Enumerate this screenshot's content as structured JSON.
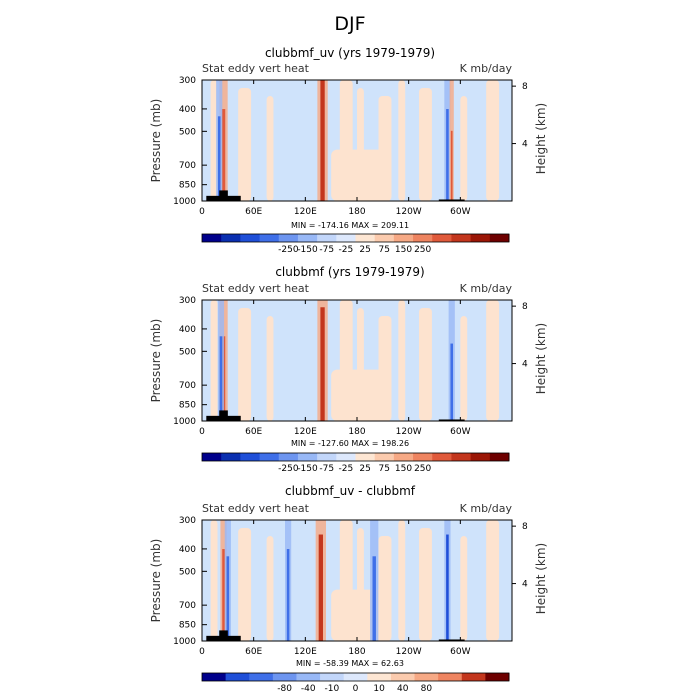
{
  "page_title": "DJF",
  "colors": {
    "bg_blue": "#cfe3fb",
    "bg_peach": "#fde3cf",
    "land": "#000000"
  },
  "chart_data": [
    {
      "type": "heatmap",
      "title": "clubbmf_uv (yrs 1979-1979)",
      "left_subtitle": "Stat eddy vert heat",
      "right_subtitle": "K mb/day",
      "ylabel": "Pressure (mb)",
      "ylabel_right": "Height (km)",
      "x_tick_labels": [
        "0",
        "60E",
        "120E",
        "180",
        "120W",
        "60W"
      ],
      "x_ticks_deg": [
        0,
        60,
        120,
        180,
        240,
        300
      ],
      "xlim": [
        0,
        360
      ],
      "y_tick_labels": [
        "300",
        "400",
        "500",
        "700",
        "850",
        "1000"
      ],
      "y_ticks": [
        300,
        400,
        500,
        700,
        850,
        1000
      ],
      "ylim": [
        300,
        1000
      ],
      "right_tick_labels": [
        "8",
        "4"
      ],
      "right_ticks_km": [
        8,
        4
      ],
      "stats": "MIN = -174.16   MAX = 209.11",
      "colorbar_labels": [
        "-250",
        "-150",
        "-75",
        "-25",
        "25",
        "75",
        "150",
        "250"
      ],
      "colorbar_colors": [
        "#00008b",
        "#0a2fb0",
        "#1f4fd8",
        "#3f6fe8",
        "#6d95f0",
        "#98b8f6",
        "#c2d6fa",
        "#dde8fc",
        "#fde6d3",
        "#fbcbae",
        "#f6a985",
        "#ee8460",
        "#e05a3b",
        "#c3361d",
        "#9b1606",
        "#6e0000"
      ],
      "features": [
        {
          "lon": 140,
          "width": 5,
          "intensity": 1.0,
          "sign": 1
        },
        {
          "lon": 25,
          "width": 4,
          "intensity": 0.6,
          "sign": 1
        },
        {
          "lon": 20,
          "width": 3,
          "intensity": 0.5,
          "sign": -1
        },
        {
          "lon": 285,
          "width": 3,
          "intensity": 0.6,
          "sign": -1
        },
        {
          "lon": 290,
          "width": 2,
          "intensity": 0.3,
          "sign": 1
        }
      ],
      "land_blocks": [
        {
          "lon_start": 5,
          "lon_end": 45,
          "p_top": 950
        },
        {
          "lon_start": 20,
          "lon_end": 30,
          "p_top": 900
        },
        {
          "lon_start": 275,
          "lon_end": 305,
          "p_top": 985
        }
      ]
    },
    {
      "type": "heatmap",
      "title": "clubbmf (yrs 1979-1979)",
      "left_subtitle": "Stat eddy vert heat",
      "right_subtitle": "K mb/day",
      "ylabel": "Pressure (mb)",
      "ylabel_right": "Height (km)",
      "x_tick_labels": [
        "0",
        "60E",
        "120E",
        "180",
        "120W",
        "60W"
      ],
      "x_ticks_deg": [
        0,
        60,
        120,
        180,
        240,
        300
      ],
      "xlim": [
        0,
        360
      ],
      "y_tick_labels": [
        "300",
        "400",
        "500",
        "700",
        "850",
        "1000"
      ],
      "y_ticks": [
        300,
        400,
        500,
        700,
        850,
        1000
      ],
      "ylim": [
        300,
        1000
      ],
      "right_tick_labels": [
        "8",
        "4"
      ],
      "right_ticks_km": [
        8,
        4
      ],
      "stats": "MIN = -127.60   MAX = 198.26",
      "colorbar_labels": [
        "-250",
        "-150",
        "-75",
        "-25",
        "25",
        "75",
        "150",
        "250"
      ],
      "colorbar_colors": [
        "#00008b",
        "#0a2fb0",
        "#1f4fd8",
        "#3f6fe8",
        "#6d95f0",
        "#98b8f6",
        "#c2d6fa",
        "#dde8fc",
        "#fde6d3",
        "#fbcbae",
        "#f6a985",
        "#ee8460",
        "#e05a3b",
        "#c3361d",
        "#9b1606",
        "#6e0000"
      ],
      "features": [
        {
          "lon": 140,
          "width": 5,
          "intensity": 0.9,
          "sign": 1
        },
        {
          "lon": 25,
          "width": 4,
          "intensity": 0.5,
          "sign": 1
        },
        {
          "lon": 22,
          "width": 3,
          "intensity": 0.5,
          "sign": -1
        },
        {
          "lon": 290,
          "width": 3,
          "intensity": 0.4,
          "sign": -1
        }
      ],
      "land_blocks": [
        {
          "lon_start": 5,
          "lon_end": 45,
          "p_top": 950
        },
        {
          "lon_start": 20,
          "lon_end": 30,
          "p_top": 900
        },
        {
          "lon_start": 275,
          "lon_end": 305,
          "p_top": 985
        }
      ]
    },
    {
      "type": "heatmap",
      "title": "clubbmf_uv - clubbmf",
      "left_subtitle": "Stat eddy vert heat",
      "right_subtitle": "K mb/day",
      "ylabel": "Pressure (mb)",
      "ylabel_right": "Height (km)",
      "x_tick_labels": [
        "0",
        "60E",
        "120E",
        "180",
        "120W",
        "60W"
      ],
      "x_ticks_deg": [
        0,
        60,
        120,
        180,
        240,
        300
      ],
      "xlim": [
        0,
        360
      ],
      "y_tick_labels": [
        "300",
        "400",
        "500",
        "700",
        "850",
        "1000"
      ],
      "y_ticks": [
        300,
        400,
        500,
        700,
        850,
        1000
      ],
      "ylim": [
        300,
        1000
      ],
      "right_tick_labels": [
        "8",
        "4"
      ],
      "right_ticks_km": [
        8,
        4
      ],
      "stats": "MIN = -58.39   MAX =  62.63",
      "colorbar_labels": [
        "-80",
        "-40",
        "-10",
        "0",
        "10",
        "40",
        "80"
      ],
      "colorbar_colors": [
        "#00008b",
        "#1f4fd8",
        "#3f6fe8",
        "#6d95f0",
        "#98b8f6",
        "#c2d6fa",
        "#dde8fc",
        "#fde6d3",
        "#fbcbae",
        "#f6a985",
        "#ee8460",
        "#c3361d",
        "#6e0000"
      ],
      "features": [
        {
          "lon": 138,
          "width": 5,
          "intensity": 0.8,
          "sign": 1
        },
        {
          "lon": 100,
          "width": 3,
          "intensity": 0.6,
          "sign": -1
        },
        {
          "lon": 285,
          "width": 3,
          "intensity": 0.8,
          "sign": -1
        },
        {
          "lon": 25,
          "width": 3,
          "intensity": 0.6,
          "sign": 1
        },
        {
          "lon": 30,
          "width": 3,
          "intensity": 0.5,
          "sign": -1
        },
        {
          "lon": 200,
          "width": 4,
          "intensity": 0.5,
          "sign": -1
        }
      ],
      "land_blocks": [
        {
          "lon_start": 5,
          "lon_end": 45,
          "p_top": 950
        },
        {
          "lon_start": 20,
          "lon_end": 30,
          "p_top": 900
        },
        {
          "lon_start": 275,
          "lon_end": 305,
          "p_top": 985
        }
      ]
    }
  ]
}
